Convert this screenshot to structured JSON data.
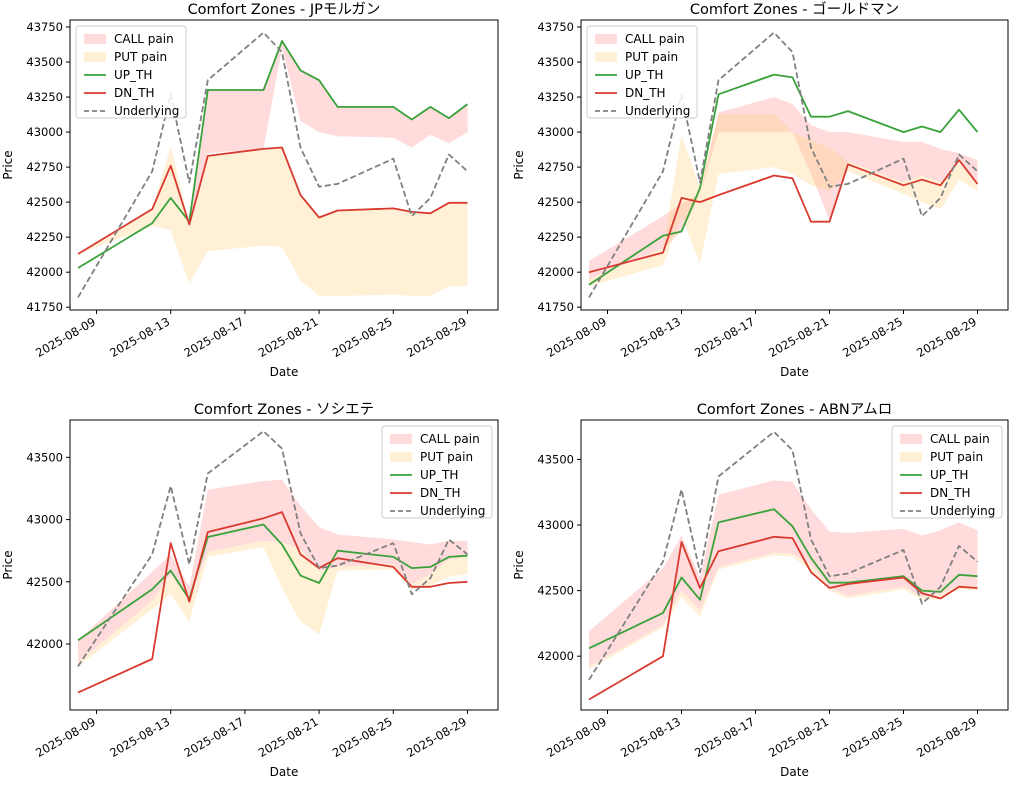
{
  "colors": {
    "call_fill": "#ff9999",
    "put_fill": "#ffd48a",
    "up_th": "#3aa23a",
    "dn_th": "#d93a2f",
    "underlying": "#808080",
    "axes": "#000000",
    "legend_border": "#cccccc"
  },
  "chart_data": [
    {
      "type": "line",
      "title": "Comfort Zones - JPモルガン",
      "xlabel": "Date",
      "ylabel": "Price",
      "ylim": [
        41730,
        43800
      ],
      "yticks": [
        41750,
        42000,
        42250,
        42500,
        42750,
        43000,
        43250,
        43500,
        43750
      ],
      "xlim": [
        0,
        22
      ],
      "xticks": [
        1,
        5,
        9,
        13,
        17,
        21
      ],
      "xtick_labels": [
        "2025-08-09",
        "2025-08-13",
        "2025-08-17",
        "2025-08-21",
        "2025-08-25",
        "2025-08-29"
      ],
      "legend_position": "upper left",
      "legend": [
        "CALL pain",
        "PUT pain",
        "UP_TH",
        "DN_TH",
        "Underlying"
      ],
      "x_dates": [
        "2025-08-08",
        "2025-08-12",
        "2025-08-13",
        "2025-08-14",
        "2025-08-15",
        "2025-08-18",
        "2025-08-19",
        "2025-08-20",
        "2025-08-21",
        "2025-08-22",
        "2025-08-25",
        "2025-08-26",
        "2025-08-27",
        "2025-08-28",
        "2025-08-29"
      ],
      "series": [
        {
          "name": "UP_TH",
          "style": "line",
          "values": [
            42030,
            42350,
            42530,
            42360,
            43300,
            43300,
            43650,
            43440,
            43370,
            43180,
            43180,
            43090,
            43180,
            43100,
            43200
          ]
        },
        {
          "name": "DN_TH",
          "style": "line",
          "values": [
            42130,
            42450,
            42760,
            42340,
            42830,
            42880,
            42890,
            42550,
            42390,
            42440,
            42455,
            42430,
            42420,
            42495,
            42495
          ]
        }
      ],
      "underlying": {
        "name": "Underlying",
        "style": "dashed",
        "values": [
          41820,
          42720,
          43270,
          42640,
          43370,
          43710,
          43570,
          42890,
          42610,
          42630,
          42810,
          42400,
          42530,
          42840,
          42720
        ]
      },
      "call_band": {
        "name": "CALL pain",
        "upper": [
          42130,
          42450,
          42760,
          42340,
          43300,
          43300,
          43650,
          43440,
          43370,
          43180,
          43180,
          43090,
          43180,
          43100,
          43200
        ],
        "lower": [
          42130,
          42450,
          42760,
          42340,
          42850,
          42880,
          43600,
          43080,
          43000,
          42970,
          42960,
          42890,
          42980,
          42920,
          43000
        ]
      },
      "put_band": {
        "name": "PUT pain",
        "upper": [
          42130,
          42450,
          42900,
          42340,
          42830,
          42880,
          42890,
          42550,
          42390,
          42440,
          42455,
          42430,
          42420,
          42495,
          42495
        ],
        "lower": [
          42130,
          42330,
          42300,
          41920,
          42150,
          42190,
          42180,
          41940,
          41830,
          41830,
          41840,
          41830,
          41830,
          41900,
          41900
        ]
      }
    },
    {
      "type": "line",
      "title": "Comfort Zones - ゴールドマン",
      "xlabel": "Date",
      "ylabel": "Price",
      "ylim": [
        41730,
        43800
      ],
      "yticks": [
        41750,
        42000,
        42250,
        42500,
        42750,
        43000,
        43250,
        43500,
        43750
      ],
      "xlim": [
        0,
        22
      ],
      "xticks": [
        1,
        5,
        9,
        13,
        17,
        21
      ],
      "xtick_labels": [
        "2025-08-09",
        "2025-08-13",
        "2025-08-17",
        "2025-08-21",
        "2025-08-25",
        "2025-08-29"
      ],
      "legend_position": "upper left",
      "legend": [
        "CALL pain",
        "PUT pain",
        "UP_TH",
        "DN_TH",
        "Underlying"
      ],
      "x_dates": [
        "2025-08-08",
        "2025-08-12",
        "2025-08-13",
        "2025-08-14",
        "2025-08-15",
        "2025-08-18",
        "2025-08-19",
        "2025-08-20",
        "2025-08-21",
        "2025-08-22",
        "2025-08-25",
        "2025-08-26",
        "2025-08-27",
        "2025-08-28",
        "2025-08-29"
      ],
      "series": [
        {
          "name": "UP_TH",
          "style": "line",
          "values": [
            41910,
            42260,
            42290,
            42600,
            43270,
            43410,
            43390,
            43110,
            43110,
            43150,
            43000,
            43040,
            43000,
            43160,
            43000
          ]
        },
        {
          "name": "DN_TH",
          "style": "line",
          "values": [
            42000,
            42140,
            42530,
            42500,
            42550,
            42690,
            42670,
            42360,
            42360,
            42770,
            42620,
            42660,
            42620,
            42800,
            42630
          ]
        }
      ],
      "underlying": {
        "name": "Underlying",
        "style": "dashed",
        "values": [
          41820,
          42720,
          43270,
          42640,
          43370,
          43710,
          43570,
          42890,
          42610,
          42630,
          42810,
          42400,
          42530,
          42840,
          42720
        ]
      },
      "call_band": {
        "name": "CALL pain",
        "upper": [
          42080,
          42400,
          42490,
          42560,
          43140,
          43250,
          43200,
          43050,
          43000,
          43000,
          42930,
          42930,
          42880,
          42850,
          42800
        ]
      },
      "call_band_lower": [
        41950,
        42170,
        42290,
        42560,
        43000,
        43000,
        43000,
        42700,
        42370,
        42790,
        42640,
        42690,
        42640,
        42800,
        42640
      ],
      "put_band": {
        "name": "PUT pain",
        "upper": [
          41950,
          42170,
          42980,
          42600,
          43130,
          43130,
          43000,
          42940,
          42890,
          42790,
          42640,
          42690,
          42640,
          42780,
          42640
        ],
        "lower": [
          41900,
          42050,
          42400,
          42060,
          42700,
          42750,
          42700,
          42620,
          42580,
          42720,
          42560,
          42500,
          42450,
          42660,
          42580
        ]
      }
    },
    {
      "type": "line",
      "title": "Comfort Zones - ソシエテ",
      "xlabel": "Date",
      "ylabel": "Price",
      "ylim": [
        41470,
        43800
      ],
      "yticks": [
        42000,
        42500,
        43000,
        43500
      ],
      "xlim": [
        0,
        22
      ],
      "xticks": [
        1,
        5,
        9,
        13,
        17,
        21
      ],
      "xtick_labels": [
        "2025-08-09",
        "2025-08-13",
        "2025-08-17",
        "2025-08-21",
        "2025-08-25",
        "2025-08-29"
      ],
      "legend_position": "upper right",
      "legend": [
        "CALL pain",
        "PUT pain",
        "UP_TH",
        "DN_TH",
        "Underlying"
      ],
      "x_dates": [
        "2025-08-08",
        "2025-08-12",
        "2025-08-13",
        "2025-08-14",
        "2025-08-15",
        "2025-08-18",
        "2025-08-19",
        "2025-08-20",
        "2025-08-21",
        "2025-08-22",
        "2025-08-25",
        "2025-08-26",
        "2025-08-27",
        "2025-08-28",
        "2025-08-29"
      ],
      "series": [
        {
          "name": "UP_TH",
          "style": "line",
          "values": [
            42030,
            42440,
            42590,
            42360,
            42860,
            42960,
            42800,
            42550,
            42490,
            42750,
            42700,
            42610,
            42620,
            42700,
            42710
          ]
        },
        {
          "name": "DN_TH",
          "style": "line",
          "values": [
            41610,
            41880,
            42810,
            42340,
            42900,
            43010,
            43060,
            42720,
            42610,
            42690,
            42620,
            42460,
            42460,
            42490,
            42500
          ]
        }
      ],
      "underlying": {
        "name": "Underlying",
        "style": "dashed",
        "values": [
          41820,
          42720,
          43270,
          42640,
          43370,
          43710,
          43570,
          42890,
          42610,
          42630,
          42810,
          42400,
          42530,
          42840,
          42720
        ]
      },
      "call_band": {
        "name": "CALL pain",
        "upper": [
          42030,
          42580,
          42720,
          42460,
          43240,
          43310,
          43320,
          43110,
          42940,
          42880,
          42840,
          42820,
          42800,
          42830,
          42830
        ],
        "lower": [
          41850,
          42350,
          42560,
          42350,
          42740,
          42830,
          42820,
          42760,
          42590,
          42620,
          42640,
          42480,
          42560,
          42680,
          42700
        ]
      },
      "put_band": {
        "name": "PUT pain",
        "upper": [
          41850,
          42350,
          42560,
          42350,
          42740,
          42830,
          42820,
          42760,
          42590,
          42620,
          42640,
          42480,
          42560,
          42680,
          42700
        ],
        "lower": [
          41820,
          42280,
          42400,
          42180,
          42700,
          42780,
          42450,
          42180,
          42080,
          42590,
          42600,
          42440,
          42470,
          42540,
          42560
        ]
      }
    },
    {
      "type": "line",
      "title": "Comfort Zones - ABNアムロ",
      "xlabel": "Date",
      "ylabel": "Price",
      "ylim": [
        41590,
        43800
      ],
      "yticks": [
        42000,
        42500,
        43000,
        43500
      ],
      "xlim": [
        0,
        22
      ],
      "xticks": [
        1,
        5,
        9,
        13,
        17,
        21
      ],
      "xtick_labels": [
        "2025-08-09",
        "2025-08-13",
        "2025-08-17",
        "2025-08-21",
        "2025-08-25",
        "2025-08-29"
      ],
      "legend_position": "upper right",
      "legend": [
        "CALL pain",
        "PUT pain",
        "UP_TH",
        "DN_TH",
        "Underlying"
      ],
      "x_dates": [
        "2025-08-08",
        "2025-08-12",
        "2025-08-13",
        "2025-08-14",
        "2025-08-15",
        "2025-08-18",
        "2025-08-19",
        "2025-08-20",
        "2025-08-21",
        "2025-08-22",
        "2025-08-25",
        "2025-08-26",
        "2025-08-27",
        "2025-08-28",
        "2025-08-29"
      ],
      "series": [
        {
          "name": "UP_TH",
          "style": "line",
          "values": [
            42060,
            42330,
            42600,
            42430,
            43020,
            43120,
            42990,
            42750,
            42560,
            42560,
            42610,
            42500,
            42490,
            42620,
            42610
          ]
        },
        {
          "name": "DN_TH",
          "style": "line",
          "values": [
            41670,
            42000,
            42870,
            42520,
            42800,
            42910,
            42900,
            42640,
            42520,
            42550,
            42600,
            42480,
            42440,
            42530,
            42520
          ]
        }
      ],
      "underlying": {
        "name": "Underlying",
        "style": "dashed",
        "values": [
          41820,
          42720,
          43270,
          42640,
          43370,
          43710,
          43570,
          42890,
          42610,
          42630,
          42810,
          42400,
          42530,
          42840,
          42720
        ]
      },
      "call_band": {
        "name": "CALL pain",
        "upper": [
          42190,
          42670,
          42920,
          42600,
          43230,
          43340,
          43330,
          43120,
          42950,
          42940,
          42970,
          42920,
          42960,
          43020,
          42960
        ],
        "lower": [
          41920,
          42240,
          42500,
          42350,
          42680,
          42790,
          42780,
          42700,
          42520,
          42460,
          42530,
          42450,
          42470,
          42540,
          42530
        ]
      },
      "put_band": {
        "name": "PUT pain",
        "upper": [
          41920,
          42240,
          42500,
          42350,
          42680,
          42790,
          42780,
          42700,
          42520,
          42460,
          42530,
          42450,
          42470,
          42540,
          42530
        ],
        "lower": [
          41900,
          42220,
          42450,
          42300,
          42660,
          42770,
          42760,
          42650,
          42500,
          42440,
          42510,
          42430,
          42440,
          42510,
          42500
        ]
      }
    }
  ]
}
